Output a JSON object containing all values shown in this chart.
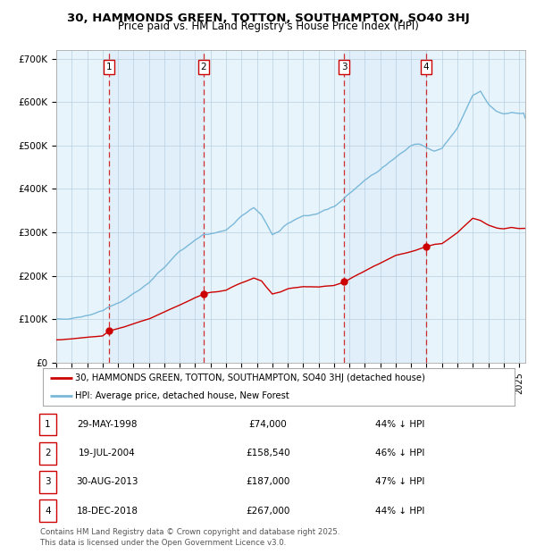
{
  "title_line1": "30, HAMMONDS GREEN, TOTTON, SOUTHAMPTON, SO40 3HJ",
  "title_line2": "Price paid vs. HM Land Registry's House Price Index (HPI)",
  "hpi_color": "#7ab8d9",
  "price_color": "#cc0000",
  "bg_color": "#ffffff",
  "chart_bg": "#e8f4fb",
  "grid_color": "#b8cfe0",
  "legend_line1": "30, HAMMONDS GREEN, TOTTON, SOUTHAMPTON, SO40 3HJ (detached house)",
  "legend_line2": "HPI: Average price, detached house, New Forest",
  "table_rows": [
    [
      "1",
      "29-MAY-1998",
      "£74,000",
      "44% ↓ HPI"
    ],
    [
      "2",
      "19-JUL-2004",
      "£158,540",
      "46% ↓ HPI"
    ],
    [
      "3",
      "30-AUG-2013",
      "£187,000",
      "47% ↓ HPI"
    ],
    [
      "4",
      "18-DEC-2018",
      "£267,000",
      "44% ↓ HPI"
    ]
  ],
  "footer": "Contains HM Land Registry data © Crown copyright and database right 2025.\nThis data is licensed under the Open Government Licence v3.0.",
  "ylim": [
    0,
    720000
  ],
  "yticks": [
    0,
    100000,
    200000,
    300000,
    400000,
    500000,
    600000,
    700000
  ],
  "ytick_labels": [
    "£0",
    "£100K",
    "£200K",
    "£300K",
    "£400K",
    "£500K",
    "£600K",
    "£700K"
  ],
  "sale_year_floats": [
    1998.41,
    2004.54,
    2013.66,
    2018.96
  ],
  "sale_prices": [
    74000,
    158540,
    187000,
    267000
  ],
  "hpi_anchors": [
    [
      1995.0,
      100000
    ],
    [
      1996.0,
      105000
    ],
    [
      1997.0,
      112000
    ],
    [
      1998.0,
      122000
    ],
    [
      1999.0,
      138000
    ],
    [
      2000.0,
      158000
    ],
    [
      2001.0,
      182000
    ],
    [
      2002.0,
      218000
    ],
    [
      2003.0,
      258000
    ],
    [
      2004.0,
      285000
    ],
    [
      2004.5,
      295000
    ],
    [
      2005.0,
      298000
    ],
    [
      2006.0,
      308000
    ],
    [
      2007.0,
      340000
    ],
    [
      2007.8,
      358000
    ],
    [
      2008.3,
      340000
    ],
    [
      2009.0,
      288000
    ],
    [
      2009.5,
      298000
    ],
    [
      2010.0,
      315000
    ],
    [
      2011.0,
      328000
    ],
    [
      2012.0,
      332000
    ],
    [
      2013.0,
      345000
    ],
    [
      2014.0,
      375000
    ],
    [
      2015.0,
      405000
    ],
    [
      2016.0,
      432000
    ],
    [
      2017.0,
      455000
    ],
    [
      2018.0,
      478000
    ],
    [
      2018.5,
      482000
    ],
    [
      2019.0,
      475000
    ],
    [
      2019.5,
      468000
    ],
    [
      2020.0,
      472000
    ],
    [
      2021.0,
      515000
    ],
    [
      2022.0,
      588000
    ],
    [
      2022.5,
      600000
    ],
    [
      2023.0,
      572000
    ],
    [
      2023.5,
      555000
    ],
    [
      2024.0,
      548000
    ],
    [
      2024.5,
      552000
    ],
    [
      2025.0,
      548000
    ]
  ],
  "price_anchors": [
    [
      1995.0,
      53000
    ],
    [
      1996.0,
      56000
    ],
    [
      1997.0,
      60000
    ],
    [
      1998.0,
      63000
    ],
    [
      1998.41,
      74000
    ],
    [
      1999.0,
      80000
    ],
    [
      2000.0,
      90000
    ],
    [
      2001.0,
      102000
    ],
    [
      2002.0,
      118000
    ],
    [
      2003.0,
      133000
    ],
    [
      2004.0,
      150000
    ],
    [
      2004.54,
      158540
    ],
    [
      2005.0,
      162000
    ],
    [
      2006.0,
      166000
    ],
    [
      2007.0,
      183000
    ],
    [
      2007.8,
      194000
    ],
    [
      2008.3,
      188000
    ],
    [
      2009.0,
      158000
    ],
    [
      2009.5,
      162000
    ],
    [
      2010.0,
      170000
    ],
    [
      2011.0,
      176000
    ],
    [
      2012.0,
      175000
    ],
    [
      2013.0,
      180000
    ],
    [
      2013.66,
      187000
    ],
    [
      2014.0,
      194000
    ],
    [
      2015.0,
      212000
    ],
    [
      2016.0,
      230000
    ],
    [
      2017.0,
      247000
    ],
    [
      2018.0,
      256000
    ],
    [
      2018.96,
      267000
    ],
    [
      2019.5,
      272000
    ],
    [
      2020.0,
      274000
    ],
    [
      2021.0,
      298000
    ],
    [
      2022.0,
      332000
    ],
    [
      2022.5,
      328000
    ],
    [
      2023.0,
      318000
    ],
    [
      2023.5,
      312000
    ],
    [
      2024.0,
      310000
    ],
    [
      2024.5,
      313000
    ],
    [
      2025.0,
      310000
    ]
  ],
  "xmin": 1995.0,
  "xmax": 2025.4
}
